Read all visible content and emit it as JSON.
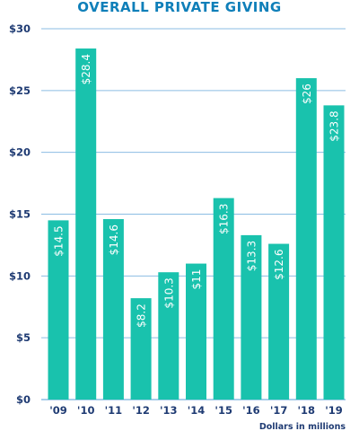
{
  "chart_data": {
    "type": "bar",
    "title": "OVERALL PRIVATE GIVING",
    "categories": [
      "'09",
      "'10",
      "'11",
      "'12",
      "'13",
      "'14",
      "'15",
      "'16",
      "'17",
      "'18",
      "'19"
    ],
    "values": [
      14.5,
      28.4,
      14.6,
      8.2,
      10.3,
      11,
      16.3,
      13.3,
      12.6,
      26,
      23.8
    ],
    "value_labels": [
      "$14.5",
      "$28.4",
      "$14.6",
      "$8.2",
      "$10.3",
      "$11",
      "$16.3",
      "$13.3",
      "$12.6",
      "$26",
      "$23.8"
    ],
    "y_ticks": [
      0,
      5,
      10,
      15,
      20,
      25,
      30
    ],
    "y_tick_labels": [
      "$0",
      "$5",
      "$10",
      "$15",
      "$20",
      "$25",
      "$30"
    ],
    "ylim": [
      0,
      30
    ],
    "grid": true,
    "units_note": "Dollars in millions",
    "colors": {
      "bar": "#19c2ad",
      "grid": "#8bbde3",
      "title": "#0f7fb9",
      "text": "#1f3b73"
    }
  }
}
